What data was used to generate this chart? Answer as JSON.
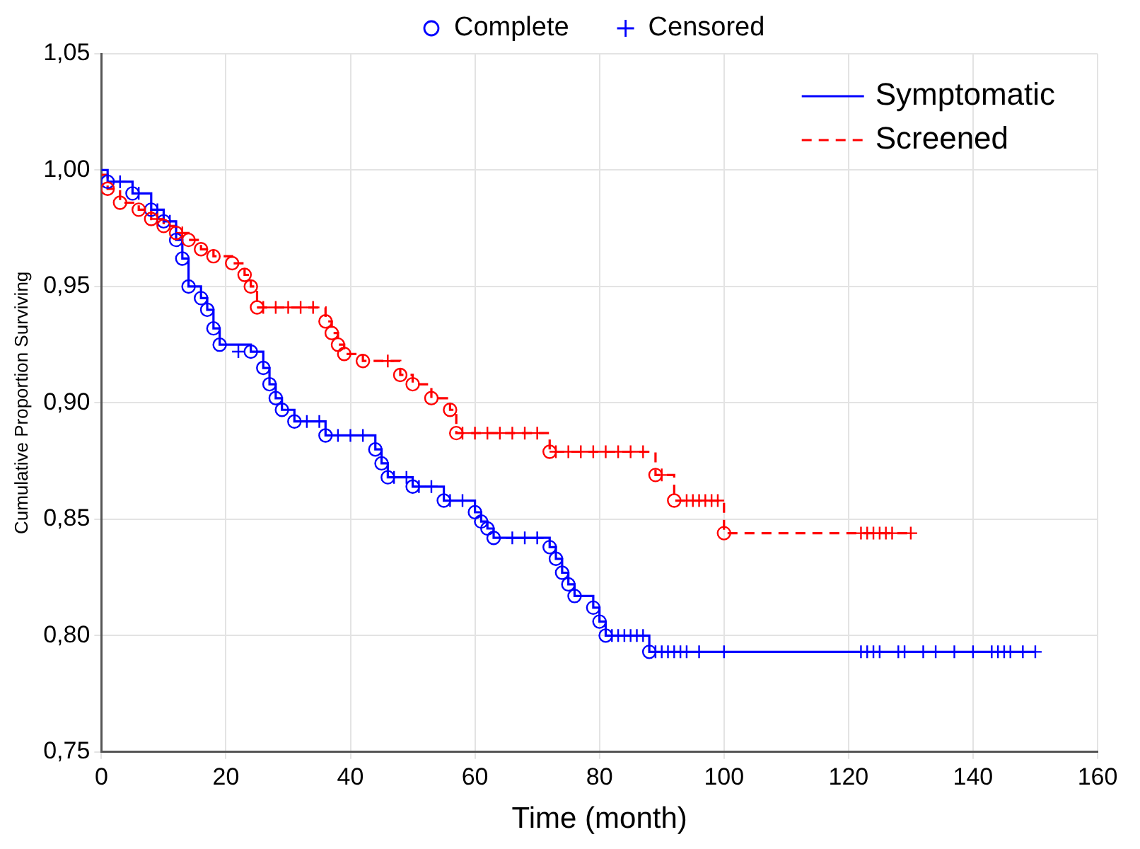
{
  "chart_data": {
    "type": "step",
    "xlabel": "Time (month)",
    "ylabel": "Cumulative Proportion Surviving",
    "xlim": [
      0,
      160
    ],
    "xticks": [
      0,
      20,
      40,
      60,
      80,
      100,
      120,
      140,
      160
    ],
    "ylim": [
      0.75,
      1.05
    ],
    "yticks": [
      {
        "value": 0.75,
        "label": "0,75"
      },
      {
        "value": 0.8,
        "label": "0,80"
      },
      {
        "value": 0.85,
        "label": "0,85"
      },
      {
        "value": 0.9,
        "label": "0,90"
      },
      {
        "value": 0.95,
        "label": "0,95"
      },
      {
        "value": 1.0,
        "label": "1,00"
      },
      {
        "value": 1.05,
        "label": "1,05"
      }
    ],
    "grid": true,
    "legend": "top right",
    "series": [
      {
        "name": "Symptomatic",
        "color": "#0000ff",
        "line_style": "solid",
        "marker": "none",
        "x": [
          0,
          1,
          5,
          8,
          10,
          12,
          13,
          14,
          16,
          17,
          18,
          19,
          24,
          26,
          27,
          28,
          29,
          31,
          36,
          44,
          45,
          46,
          50,
          55,
          60,
          61,
          62,
          63,
          72,
          73,
          74,
          75,
          76,
          79,
          80,
          81,
          88,
          150
        ],
        "values": [
          1.0,
          0.995,
          0.99,
          0.983,
          0.978,
          0.97,
          0.962,
          0.95,
          0.945,
          0.94,
          0.932,
          0.925,
          0.922,
          0.915,
          0.908,
          0.902,
          0.897,
          0.892,
          0.886,
          0.88,
          0.874,
          0.868,
          0.864,
          0.858,
          0.853,
          0.849,
          0.846,
          0.842,
          0.838,
          0.833,
          0.827,
          0.822,
          0.817,
          0.812,
          0.806,
          0.8,
          0.793,
          0.793
        ]
      },
      {
        "name": "Screened",
        "color": "#ff0000",
        "line_style": "dashed",
        "marker": "none",
        "x": [
          0,
          1,
          3,
          6,
          8,
          10,
          12,
          14,
          16,
          18,
          21,
          23,
          24,
          25,
          36,
          37,
          38,
          39,
          42,
          48,
          50,
          53,
          56,
          57,
          72,
          89,
          92,
          100,
          130
        ],
        "values": [
          0.998,
          0.992,
          0.986,
          0.983,
          0.979,
          0.976,
          0.973,
          0.97,
          0.966,
          0.963,
          0.96,
          0.955,
          0.95,
          0.941,
          0.935,
          0.93,
          0.925,
          0.921,
          0.918,
          0.912,
          0.908,
          0.902,
          0.897,
          0.887,
          0.879,
          0.869,
          0.858,
          0.844,
          0.844
        ]
      },
      {
        "name": "Complete",
        "type": "scatter",
        "marker": "circle",
        "color": "#0000ff",
        "x": [
          1,
          5,
          8,
          10,
          12,
          13,
          14,
          16,
          17,
          18,
          19,
          24,
          26,
          27,
          28,
          29,
          31,
          36,
          44,
          45,
          46,
          50,
          55,
          60,
          61,
          62,
          63,
          72,
          73,
          74,
          75,
          76,
          79,
          80,
          81,
          88,
          1,
          3,
          6,
          8,
          10,
          12,
          14,
          16,
          18,
          21,
          23,
          24,
          25,
          36,
          37,
          38,
          39,
          42,
          48,
          50,
          53,
          56,
          57,
          72,
          89,
          92,
          100
        ],
        "values": [
          0.995,
          0.99,
          0.983,
          0.978,
          0.97,
          0.962,
          0.95,
          0.945,
          0.94,
          0.932,
          0.925,
          0.922,
          0.915,
          0.908,
          0.902,
          0.897,
          0.892,
          0.886,
          0.88,
          0.874,
          0.868,
          0.864,
          0.858,
          0.853,
          0.849,
          0.846,
          0.842,
          0.838,
          0.833,
          0.827,
          0.822,
          0.817,
          0.812,
          0.806,
          0.8,
          0.793,
          0.992,
          0.986,
          0.983,
          0.979,
          0.976,
          0.973,
          0.97,
          0.966,
          0.963,
          0.96,
          0.955,
          0.95,
          0.941,
          0.935,
          0.93,
          0.925,
          0.921,
          0.918,
          0.912,
          0.908,
          0.902,
          0.897,
          0.887,
          0.879,
          0.869,
          0.858,
          0.844
        ],
        "colors": [
          "#0000ff",
          "#0000ff",
          "#0000ff",
          "#0000ff",
          "#0000ff",
          "#0000ff",
          "#0000ff",
          "#0000ff",
          "#0000ff",
          "#0000ff",
          "#0000ff",
          "#0000ff",
          "#0000ff",
          "#0000ff",
          "#0000ff",
          "#0000ff",
          "#0000ff",
          "#0000ff",
          "#0000ff",
          "#0000ff",
          "#0000ff",
          "#0000ff",
          "#0000ff",
          "#0000ff",
          "#0000ff",
          "#0000ff",
          "#0000ff",
          "#0000ff",
          "#0000ff",
          "#0000ff",
          "#0000ff",
          "#0000ff",
          "#0000ff",
          "#0000ff",
          "#0000ff",
          "#0000ff",
          "#ff0000",
          "#ff0000",
          "#ff0000",
          "#ff0000",
          "#ff0000",
          "#ff0000",
          "#ff0000",
          "#ff0000",
          "#ff0000",
          "#ff0000",
          "#ff0000",
          "#ff0000",
          "#ff0000",
          "#ff0000",
          "#ff0000",
          "#ff0000",
          "#ff0000",
          "#ff0000",
          "#ff0000",
          "#ff0000",
          "#ff0000",
          "#ff0000",
          "#ff0000",
          "#ff0000",
          "#ff0000",
          "#ff0000",
          "#ff0000"
        ]
      },
      {
        "name": "Censored",
        "type": "scatter",
        "marker": "cross",
        "color": "#0000ff",
        "x": [
          3,
          6,
          9,
          11,
          22,
          33,
          35,
          38,
          40,
          42,
          47,
          49,
          51,
          53,
          56,
          58,
          66,
          68,
          70,
          82,
          83,
          84,
          85,
          86,
          87,
          89,
          90,
          91,
          92,
          93,
          94,
          96,
          100,
          122,
          123,
          124,
          125,
          128,
          129,
          132,
          134,
          137,
          140,
          143,
          144,
          145,
          146,
          148,
          150,
          9,
          13,
          26,
          28,
          30,
          32,
          34,
          46,
          58,
          60,
          62,
          64,
          66,
          68,
          70,
          73,
          75,
          77,
          79,
          81,
          83,
          85,
          87,
          90,
          94,
          95,
          96,
          97,
          98,
          99,
          122,
          123,
          124,
          125,
          126,
          127,
          130
        ],
        "values": [
          0.995,
          0.99,
          0.983,
          0.978,
          0.922,
          0.892,
          0.892,
          0.886,
          0.886,
          0.886,
          0.868,
          0.868,
          0.864,
          0.864,
          0.858,
          0.858,
          0.842,
          0.842,
          0.842,
          0.8,
          0.8,
          0.8,
          0.8,
          0.8,
          0.8,
          0.793,
          0.793,
          0.793,
          0.793,
          0.793,
          0.793,
          0.793,
          0.793,
          0.793,
          0.793,
          0.793,
          0.793,
          0.793,
          0.793,
          0.793,
          0.793,
          0.793,
          0.793,
          0.793,
          0.793,
          0.793,
          0.793,
          0.793,
          0.793,
          0.979,
          0.973,
          0.941,
          0.941,
          0.941,
          0.941,
          0.941,
          0.918,
          0.887,
          0.887,
          0.887,
          0.887,
          0.887,
          0.887,
          0.887,
          0.879,
          0.879,
          0.879,
          0.879,
          0.879,
          0.879,
          0.879,
          0.879,
          0.869,
          0.858,
          0.858,
          0.858,
          0.858,
          0.858,
          0.858,
          0.844,
          0.844,
          0.844,
          0.844,
          0.844,
          0.844,
          0.844
        ],
        "colors": [
          "#0000ff",
          "#0000ff",
          "#0000ff",
          "#0000ff",
          "#0000ff",
          "#0000ff",
          "#0000ff",
          "#0000ff",
          "#0000ff",
          "#0000ff",
          "#0000ff",
          "#0000ff",
          "#0000ff",
          "#0000ff",
          "#0000ff",
          "#0000ff",
          "#0000ff",
          "#0000ff",
          "#0000ff",
          "#0000ff",
          "#0000ff",
          "#0000ff",
          "#0000ff",
          "#0000ff",
          "#0000ff",
          "#0000ff",
          "#0000ff",
          "#0000ff",
          "#0000ff",
          "#0000ff",
          "#0000ff",
          "#0000ff",
          "#0000ff",
          "#0000ff",
          "#0000ff",
          "#0000ff",
          "#0000ff",
          "#0000ff",
          "#0000ff",
          "#0000ff",
          "#0000ff",
          "#0000ff",
          "#0000ff",
          "#0000ff",
          "#0000ff",
          "#0000ff",
          "#0000ff",
          "#0000ff",
          "#0000ff",
          "#ff0000",
          "#ff0000",
          "#ff0000",
          "#ff0000",
          "#ff0000",
          "#ff0000",
          "#ff0000",
          "#ff0000",
          "#ff0000",
          "#ff0000",
          "#ff0000",
          "#ff0000",
          "#ff0000",
          "#ff0000",
          "#ff0000",
          "#ff0000",
          "#ff0000",
          "#ff0000",
          "#ff0000",
          "#ff0000",
          "#ff0000",
          "#ff0000",
          "#ff0000",
          "#ff0000",
          "#ff0000",
          "#ff0000",
          "#ff0000",
          "#ff0000",
          "#ff0000",
          "#ff0000",
          "#ff0000",
          "#ff0000",
          "#ff0000",
          "#ff0000",
          "#ff0000",
          "#ff0000",
          "#ff0000"
        ]
      }
    ]
  }
}
